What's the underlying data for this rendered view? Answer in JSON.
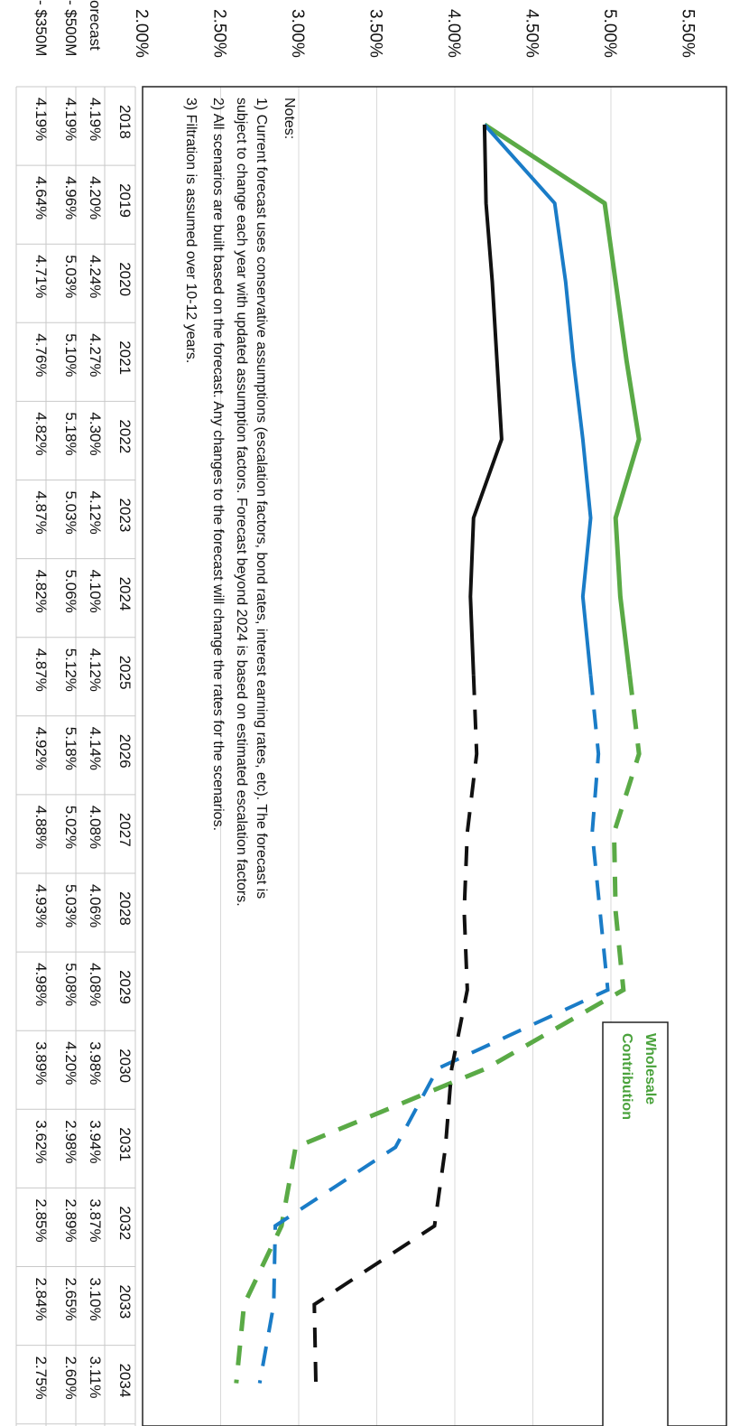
{
  "chart_data": {
    "type": "line",
    "orientation": "rotated-90-clockwise",
    "y_ticks": [
      "2.00%",
      "2.50%",
      "3.00%",
      "3.50%",
      "4.00%",
      "4.50%",
      "5.00%",
      "5.50%"
    ],
    "ylim": [
      2.0,
      5.5
    ],
    "x": [
      2018,
      2019,
      2020,
      2021,
      2022,
      2023,
      2024,
      2025,
      2026,
      2027,
      2028,
      2029,
      2030,
      2031,
      2032,
      2033,
      2034
    ],
    "solid_through": 2025,
    "grid": true,
    "legend": {
      "placement": "top-right",
      "entries": [
        "Wholesale",
        "Contribution"
      ]
    },
    "series": [
      {
        "key": "green",
        "color": "#5aaa46",
        "values": [
          4.19,
          4.96,
          5.03,
          5.1,
          5.18,
          5.03,
          5.06,
          5.12,
          5.18,
          5.02,
          5.03,
          5.08,
          4.2,
          2.98,
          2.89,
          2.65,
          2.6
        ]
      },
      {
        "key": "blue",
        "color": "#1a7cc7",
        "values": [
          4.19,
          4.64,
          4.71,
          4.76,
          4.82,
          4.87,
          4.82,
          4.87,
          4.92,
          4.88,
          4.93,
          4.98,
          3.89,
          3.62,
          2.85,
          2.84,
          2.75
        ]
      },
      {
        "key": "black",
        "color": "#111111",
        "values": [
          4.19,
          4.2,
          4.24,
          4.27,
          4.3,
          4.12,
          4.1,
          4.12,
          4.14,
          4.08,
          4.06,
          4.08,
          3.98,
          3.94,
          3.87,
          3.1,
          3.11
        ]
      }
    ],
    "notes": {
      "title": "Notes:",
      "lines": [
        "1)  Current forecast uses conservative assumptions (escalation factors, bond rates,  interest earning rates, etc).  The forecast is",
        "subject to change each year with updated assumption factors.  Forecast beyond 2024 is based on estimated escalation factors.",
        "2)  All scenarios are built based on the forecast.  Any changes to the forecast will change the rates for the scenarios.",
        "3)  Filtration is assumed over 10-12 years."
      ]
    },
    "table": {
      "header": [
        "2018",
        "2019",
        "2020",
        "2021",
        "2022",
        "2023",
        "2024",
        "2025",
        "2026",
        "2027",
        "2028",
        "2029",
        "2030",
        "2031",
        "2032",
        "2033",
        "2034"
      ],
      "rows": [
        {
          "label": "orecast",
          "values": [
            "4.19%",
            "4.20%",
            "4.24%",
            "4.27%",
            "4.30%",
            "4.12%",
            "4.10%",
            "4.12%",
            "4.14%",
            "4.08%",
            "4.06%",
            "4.08%",
            "3.98%",
            "3.94%",
            "3.87%",
            "3.10%",
            "3.11%"
          ]
        },
        {
          "label": "- $500M",
          "values": [
            "4.19%",
            "4.96%",
            "5.03%",
            "5.10%",
            "5.18%",
            "5.03%",
            "5.06%",
            "5.12%",
            "5.18%",
            "5.02%",
            "5.03%",
            "5.08%",
            "4.20%",
            "2.98%",
            "2.89%",
            "2.65%",
            "2.60%"
          ]
        },
        {
          "label": "- $350M",
          "values": [
            "4.19%",
            "4.64%",
            "4.71%",
            "4.76%",
            "4.82%",
            "4.87%",
            "4.82%",
            "4.87%",
            "4.92%",
            "4.88%",
            "4.93%",
            "4.98%",
            "3.89%",
            "3.62%",
            "2.85%",
            "2.84%",
            "2.75%"
          ]
        }
      ]
    }
  }
}
